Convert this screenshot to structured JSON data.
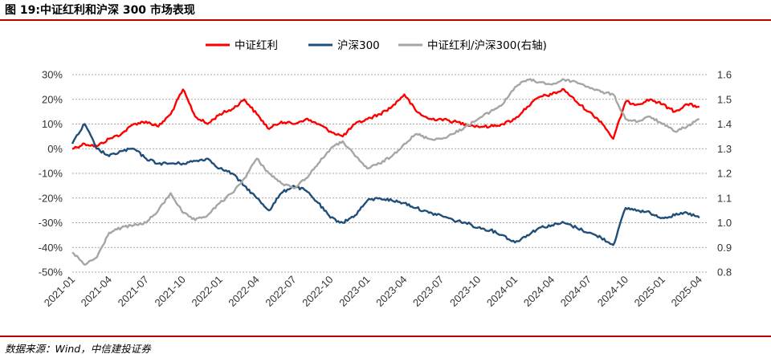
{
  "header": {
    "title": "图 19:中证红利和沪深 300 市场表现"
  },
  "footer": {
    "source": "数据来源：Wind，中信建投证券"
  },
  "chart_data": {
    "type": "line",
    "title": "",
    "xlabel": "",
    "ylabel_left": "",
    "ylabel_right": "",
    "x_ticks": [
      "2021-01",
      "2021-04",
      "2021-07",
      "2021-10",
      "2022-01",
      "2022-04",
      "2022-07",
      "2022-10",
      "2023-01",
      "2023-04",
      "2023-07",
      "2023-10",
      "2024-01",
      "2024-04",
      "2024-07",
      "2024-10",
      "2025-01",
      "2025-04"
    ],
    "y_left": {
      "ticks": [
        "30%",
        "20%",
        "10%",
        "0%",
        "-10%",
        "-20%",
        "-30%",
        "-40%",
        "-50%"
      ],
      "min": -50,
      "max": 30
    },
    "y_right": {
      "ticks": [
        "1.6",
        "1.5",
        "1.4",
        "1.3",
        "1.2",
        "1.1",
        "1.0",
        "0.9",
        "0.8"
      ],
      "min": 0.8,
      "max": 1.6
    },
    "grid": "horizontal-dashed",
    "legend_position": "top",
    "series": [
      {
        "name": "中证红利",
        "color": "#ff0000",
        "axis": "left",
        "points": [
          [
            "2021-01",
            0
          ],
          [
            "2021-02",
            2
          ],
          [
            "2021-03",
            1
          ],
          [
            "2021-04",
            4
          ],
          [
            "2021-05",
            6
          ],
          [
            "2021-06",
            10
          ],
          [
            "2021-07",
            11
          ],
          [
            "2021-08",
            9
          ],
          [
            "2021-09",
            14
          ],
          [
            "2021-10",
            24
          ],
          [
            "2021-11",
            13
          ],
          [
            "2021-12",
            10
          ],
          [
            "2022-01",
            14
          ],
          [
            "2022-02",
            16
          ],
          [
            "2022-03",
            20
          ],
          [
            "2022-04",
            14
          ],
          [
            "2022-05",
            8
          ],
          [
            "2022-06",
            11
          ],
          [
            "2022-07",
            10
          ],
          [
            "2022-08",
            12
          ],
          [
            "2022-09",
            10
          ],
          [
            "2022-10",
            7
          ],
          [
            "2022-11",
            5
          ],
          [
            "2022-12",
            10
          ],
          [
            "2023-01",
            12
          ],
          [
            "2023-02",
            14
          ],
          [
            "2023-03",
            17
          ],
          [
            "2023-04",
            22
          ],
          [
            "2023-05",
            15
          ],
          [
            "2023-06",
            12
          ],
          [
            "2023-07",
            12
          ],
          [
            "2023-08",
            11
          ],
          [
            "2023-09",
            10
          ],
          [
            "2023-10",
            9
          ],
          [
            "2023-11",
            9
          ],
          [
            "2023-12",
            10
          ],
          [
            "2024-01",
            12
          ],
          [
            "2024-02",
            17
          ],
          [
            "2024-03",
            21
          ],
          [
            "2024-04",
            22
          ],
          [
            "2024-05",
            24
          ],
          [
            "2024-06",
            19
          ],
          [
            "2024-07",
            15
          ],
          [
            "2024-08",
            11
          ],
          [
            "2024-09",
            4
          ],
          [
            "2024-10",
            19
          ],
          [
            "2024-11",
            18
          ],
          [
            "2024-12",
            20
          ],
          [
            "2025-01",
            18
          ],
          [
            "2025-02",
            15
          ],
          [
            "2025-03",
            18
          ],
          [
            "2025-04",
            17
          ]
        ]
      },
      {
        "name": "沪深300",
        "color": "#1f4e79",
        "axis": "left",
        "points": [
          [
            "2021-01",
            2
          ],
          [
            "2021-02",
            10
          ],
          [
            "2021-03",
            0
          ],
          [
            "2021-04",
            -3
          ],
          [
            "2021-05",
            -1
          ],
          [
            "2021-06",
            0
          ],
          [
            "2021-07",
            -4
          ],
          [
            "2021-08",
            -6
          ],
          [
            "2021-09",
            -6
          ],
          [
            "2021-10",
            -6
          ],
          [
            "2021-11",
            -5
          ],
          [
            "2021-12",
            -4
          ],
          [
            "2022-01",
            -8
          ],
          [
            "2022-02",
            -10
          ],
          [
            "2022-03",
            -15
          ],
          [
            "2022-04",
            -20
          ],
          [
            "2022-05",
            -25
          ],
          [
            "2022-06",
            -18
          ],
          [
            "2022-07",
            -15
          ],
          [
            "2022-08",
            -17
          ],
          [
            "2022-09",
            -22
          ],
          [
            "2022-10",
            -28
          ],
          [
            "2022-11",
            -30
          ],
          [
            "2022-12",
            -27
          ],
          [
            "2023-01",
            -21
          ],
          [
            "2023-02",
            -20
          ],
          [
            "2023-03",
            -21
          ],
          [
            "2023-04",
            -22
          ],
          [
            "2023-05",
            -24
          ],
          [
            "2023-06",
            -26
          ],
          [
            "2023-07",
            -27
          ],
          [
            "2023-08",
            -29
          ],
          [
            "2023-09",
            -30
          ],
          [
            "2023-10",
            -32
          ],
          [
            "2023-11",
            -33
          ],
          [
            "2023-12",
            -35
          ],
          [
            "2024-01",
            -38
          ],
          [
            "2024-02",
            -35
          ],
          [
            "2024-03",
            -32
          ],
          [
            "2024-04",
            -31
          ],
          [
            "2024-05",
            -30
          ],
          [
            "2024-06",
            -32
          ],
          [
            "2024-07",
            -34
          ],
          [
            "2024-08",
            -36
          ],
          [
            "2024-09",
            -39
          ],
          [
            "2024-10",
            -24
          ],
          [
            "2024-11",
            -25
          ],
          [
            "2024-12",
            -26
          ],
          [
            "2025-01",
            -28
          ],
          [
            "2025-02",
            -27
          ],
          [
            "2025-03",
            -26
          ],
          [
            "2025-04",
            -28
          ]
        ]
      },
      {
        "name": "中证红利/沪深300(右轴)",
        "color": "#a6a6a6",
        "axis": "right",
        "points": [
          [
            "2021-01",
            0.88
          ],
          [
            "2021-02",
            0.83
          ],
          [
            "2021-03",
            0.86
          ],
          [
            "2021-04",
            0.96
          ],
          [
            "2021-05",
            0.98
          ],
          [
            "2021-06",
            0.99
          ],
          [
            "2021-07",
            1.0
          ],
          [
            "2021-08",
            1.05
          ],
          [
            "2021-09",
            1.12
          ],
          [
            "2021-10",
            1.04
          ],
          [
            "2021-11",
            1.01
          ],
          [
            "2021-12",
            1.03
          ],
          [
            "2022-01",
            1.08
          ],
          [
            "2022-02",
            1.12
          ],
          [
            "2022-03",
            1.18
          ],
          [
            "2022-04",
            1.26
          ],
          [
            "2022-05",
            1.2
          ],
          [
            "2022-06",
            1.16
          ],
          [
            "2022-07",
            1.14
          ],
          [
            "2022-08",
            1.18
          ],
          [
            "2022-09",
            1.24
          ],
          [
            "2022-10",
            1.3
          ],
          [
            "2022-11",
            1.33
          ],
          [
            "2022-12",
            1.27
          ],
          [
            "2023-01",
            1.22
          ],
          [
            "2023-02",
            1.24
          ],
          [
            "2023-03",
            1.27
          ],
          [
            "2023-04",
            1.32
          ],
          [
            "2023-05",
            1.36
          ],
          [
            "2023-06",
            1.34
          ],
          [
            "2023-07",
            1.34
          ],
          [
            "2023-08",
            1.36
          ],
          [
            "2023-09",
            1.39
          ],
          [
            "2023-10",
            1.42
          ],
          [
            "2023-11",
            1.45
          ],
          [
            "2023-12",
            1.48
          ],
          [
            "2024-01",
            1.55
          ],
          [
            "2024-02",
            1.58
          ],
          [
            "2024-03",
            1.57
          ],
          [
            "2024-04",
            1.56
          ],
          [
            "2024-05",
            1.58
          ],
          [
            "2024-06",
            1.57
          ],
          [
            "2024-07",
            1.55
          ],
          [
            "2024-08",
            1.53
          ],
          [
            "2024-09",
            1.52
          ],
          [
            "2024-10",
            1.42
          ],
          [
            "2024-11",
            1.41
          ],
          [
            "2024-12",
            1.43
          ],
          [
            "2025-01",
            1.4
          ],
          [
            "2025-02",
            1.37
          ],
          [
            "2025-03",
            1.39
          ],
          [
            "2025-04",
            1.42
          ]
        ]
      }
    ]
  }
}
